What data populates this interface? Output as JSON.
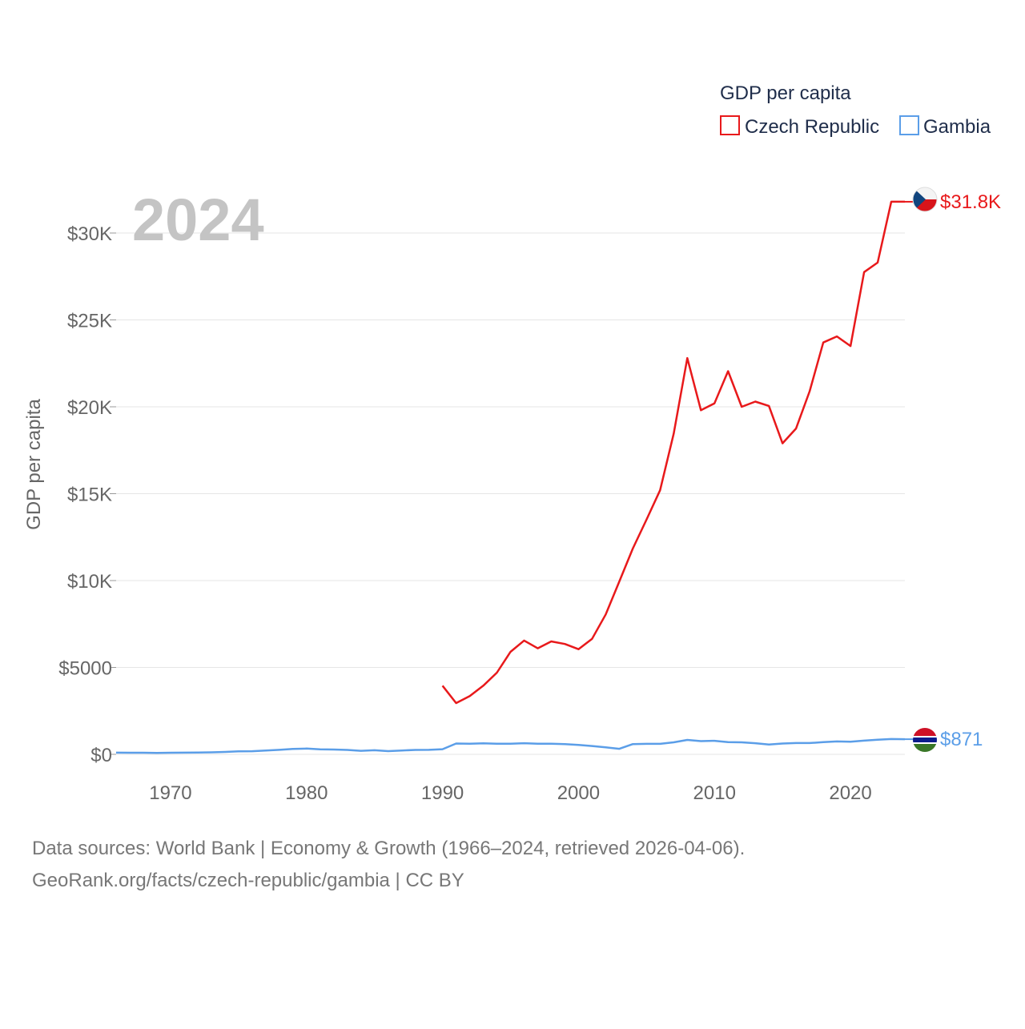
{
  "chart_data": {
    "type": "line",
    "title": "",
    "xlabel": "",
    "ylabel": "GDP per capita",
    "year_label": "2024",
    "legend": {
      "title": "GDP per capita",
      "position": "top-right",
      "entries": [
        "Czech Republic",
        "Gambia"
      ]
    },
    "xlim": [
      1966,
      2024
    ],
    "ylim": [
      0,
      32500
    ],
    "x_ticks": [
      1970,
      1980,
      1990,
      2000,
      2010,
      2020
    ],
    "y_ticks": [
      0,
      5000,
      10000,
      15000,
      20000,
      25000,
      30000
    ],
    "y_tick_labels": [
      "$0",
      "$5000",
      "$10K",
      "$15K",
      "$20K",
      "$25K",
      "$30K"
    ],
    "grid": true,
    "series": [
      {
        "name": "Czech Republic",
        "color": "#e8191b",
        "end_label": "$31.8K",
        "flag_icon": "czech-flag-icon",
        "points": [
          [
            1990,
            3950
          ],
          [
            1991,
            2950
          ],
          [
            1992,
            3350
          ],
          [
            1993,
            3950
          ],
          [
            1994,
            4700
          ],
          [
            1995,
            5900
          ],
          [
            1996,
            6550
          ],
          [
            1997,
            6100
          ],
          [
            1998,
            6500
          ],
          [
            1999,
            6350
          ],
          [
            2000,
            6050
          ],
          [
            2001,
            6650
          ],
          [
            2002,
            8050
          ],
          [
            2003,
            9950
          ],
          [
            2004,
            11850
          ],
          [
            2005,
            13500
          ],
          [
            2006,
            15200
          ],
          [
            2007,
            18450
          ],
          [
            2008,
            22800
          ],
          [
            2009,
            19800
          ],
          [
            2010,
            20200
          ],
          [
            2011,
            22050
          ],
          [
            2012,
            20000
          ],
          [
            2013,
            20300
          ],
          [
            2014,
            20050
          ],
          [
            2015,
            17900
          ],
          [
            2016,
            18750
          ],
          [
            2017,
            20900
          ],
          [
            2018,
            23700
          ],
          [
            2019,
            24050
          ],
          [
            2020,
            23500
          ],
          [
            2021,
            27750
          ],
          [
            2022,
            28300
          ],
          [
            2023,
            31800
          ],
          [
            2024,
            31800
          ]
        ]
      },
      {
        "name": "Gambia",
        "color": "#5b9ee8",
        "end_label": "$871",
        "flag_icon": "gambia-flag-icon",
        "points": [
          [
            1966,
            95
          ],
          [
            1967,
            90
          ],
          [
            1968,
            90
          ],
          [
            1969,
            85
          ],
          [
            1970,
            90
          ],
          [
            1971,
            95
          ],
          [
            1972,
            100
          ],
          [
            1973,
            115
          ],
          [
            1974,
            140
          ],
          [
            1975,
            175
          ],
          [
            1976,
            180
          ],
          [
            1977,
            215
          ],
          [
            1978,
            260
          ],
          [
            1979,
            310
          ],
          [
            1980,
            330
          ],
          [
            1981,
            290
          ],
          [
            1982,
            275
          ],
          [
            1983,
            255
          ],
          [
            1984,
            205
          ],
          [
            1985,
            235
          ],
          [
            1986,
            185
          ],
          [
            1987,
            220
          ],
          [
            1988,
            255
          ],
          [
            1989,
            260
          ],
          [
            1990,
            295
          ],
          [
            1991,
            620
          ],
          [
            1992,
            615
          ],
          [
            1993,
            630
          ],
          [
            1994,
            610
          ],
          [
            1995,
            615
          ],
          [
            1996,
            640
          ],
          [
            1997,
            615
          ],
          [
            1998,
            615
          ],
          [
            1999,
            590
          ],
          [
            2000,
            545
          ],
          [
            2001,
            480
          ],
          [
            2002,
            400
          ],
          [
            2003,
            320
          ],
          [
            2004,
            590
          ],
          [
            2005,
            605
          ],
          [
            2006,
            605
          ],
          [
            2007,
            690
          ],
          [
            2008,
            830
          ],
          [
            2009,
            760
          ],
          [
            2010,
            780
          ],
          [
            2011,
            700
          ],
          [
            2012,
            690
          ],
          [
            2013,
            640
          ],
          [
            2014,
            560
          ],
          [
            2015,
            620
          ],
          [
            2016,
            650
          ],
          [
            2017,
            650
          ],
          [
            2018,
            700
          ],
          [
            2019,
            740
          ],
          [
            2020,
            730
          ],
          [
            2021,
            790
          ],
          [
            2022,
            840
          ],
          [
            2023,
            880
          ],
          [
            2024,
            871
          ]
        ]
      }
    ]
  },
  "footer": {
    "line1": "Data sources: World Bank | Economy & Growth (1966–2024, retrieved 2026-04-06).",
    "line2": "GeoRank.org/facts/czech-republic/gambia | CC BY"
  },
  "colors": {
    "grid": "#e6e6e6",
    "axis_text": "#666666",
    "legend_title": "#1f2d4a",
    "year_watermark": "#c4c4c4"
  }
}
